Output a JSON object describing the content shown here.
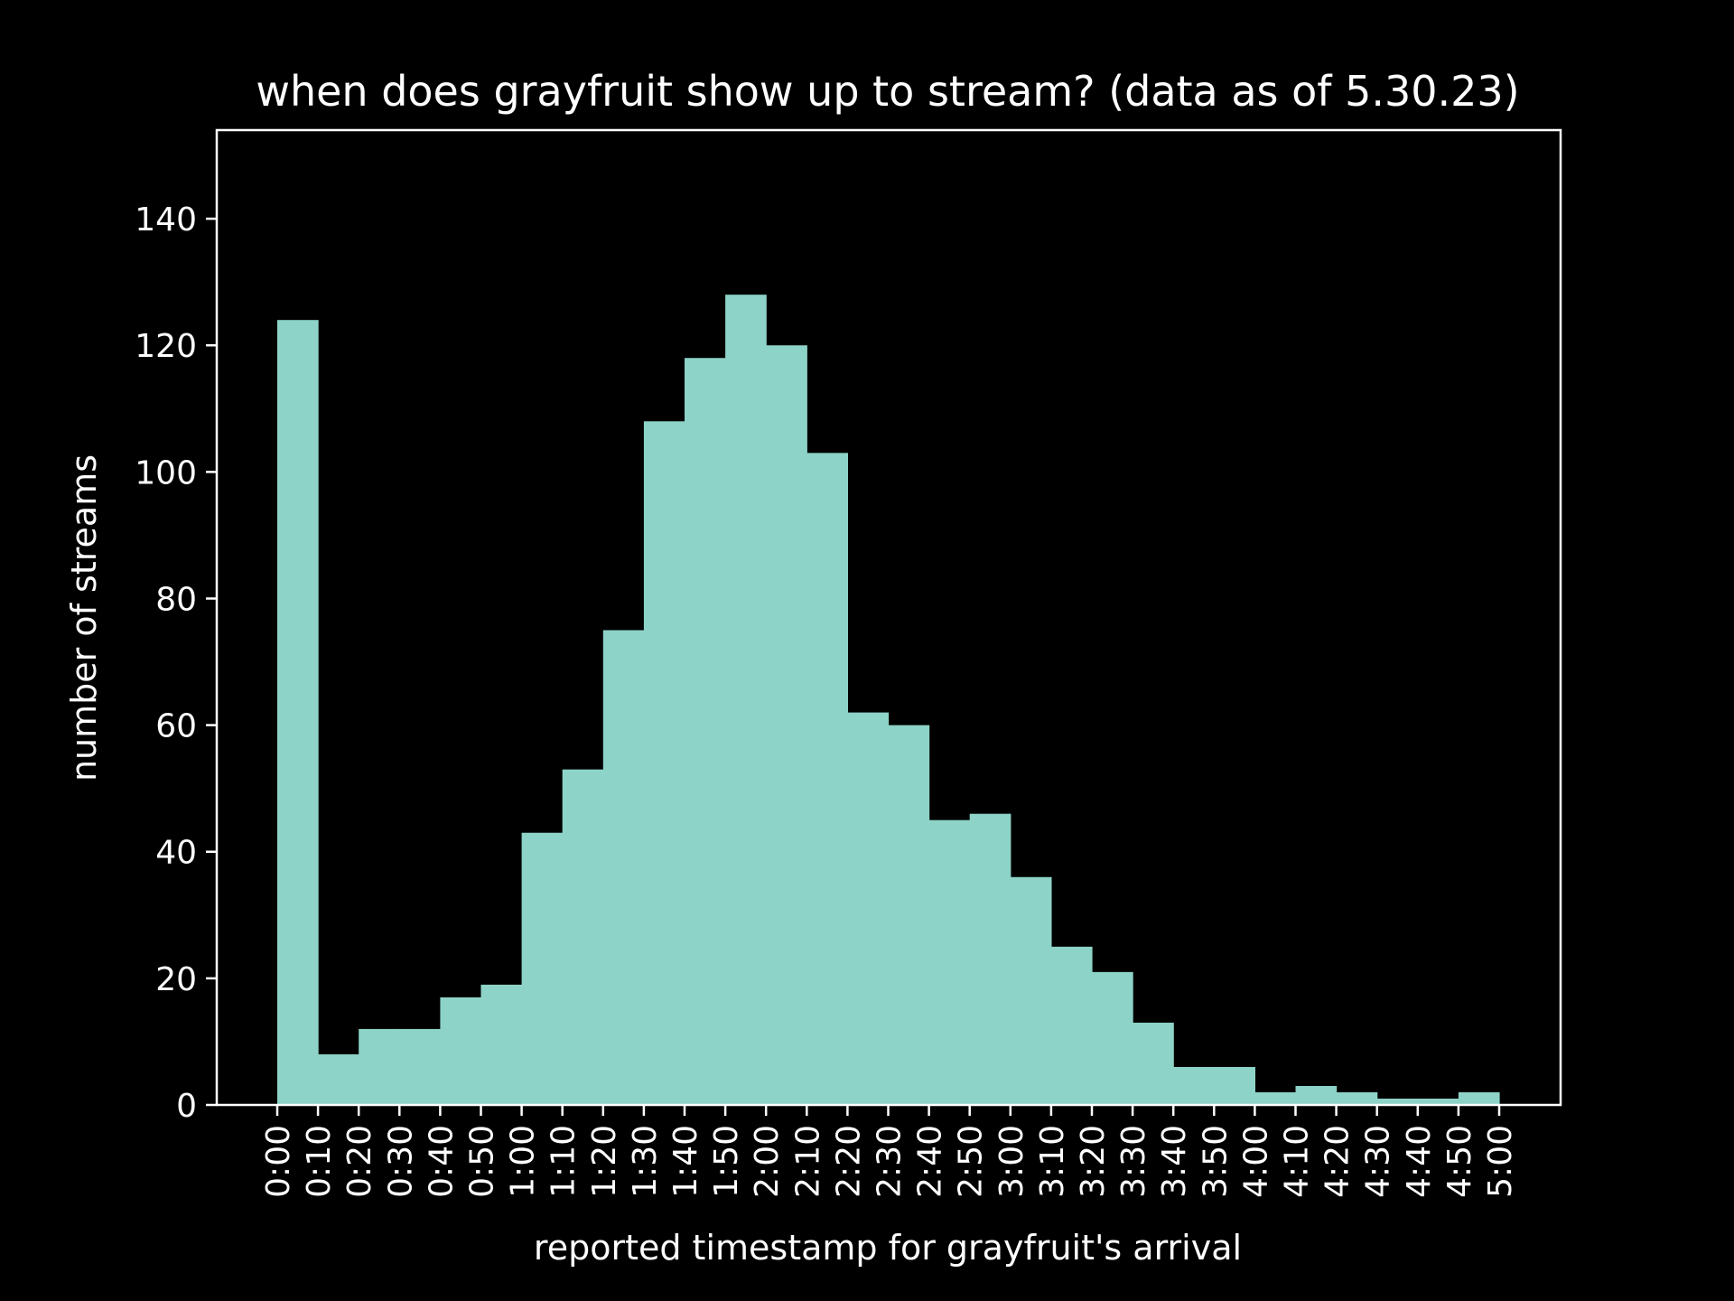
{
  "chart_data": {
    "type": "bar",
    "title": "when does grayfruit show up to stream? (data as of 5.30.23)",
    "xlabel": "reported timestamp for grayfruit's arrival",
    "ylabel": "number of streams",
    "bin_edges": [
      "0:00",
      "0:10",
      "0:20",
      "0:30",
      "0:40",
      "0:50",
      "1:00",
      "1:10",
      "1:20",
      "1:30",
      "1:40",
      "1:50",
      "2:00",
      "2:10",
      "2:20",
      "2:30",
      "2:40",
      "2:50",
      "3:00",
      "3:10",
      "3:20",
      "3:30",
      "3:40",
      "3:50",
      "4:00",
      "4:10",
      "4:20",
      "4:30",
      "4:40",
      "4:50",
      "5:00"
    ],
    "values": [
      124,
      8,
      12,
      12,
      17,
      19,
      43,
      53,
      75,
      108,
      118,
      128,
      120,
      103,
      62,
      60,
      45,
      46,
      36,
      25,
      21,
      13,
      6,
      6,
      2,
      3,
      2,
      1,
      1,
      2
    ],
    "yticks": [
      0,
      20,
      40,
      60,
      80,
      100,
      120,
      140
    ],
    "ylim": [
      0,
      154
    ],
    "bar_color": "#8dd3c7",
    "background_color": "#000000",
    "text_color": "#ffffff",
    "grid": false
  }
}
